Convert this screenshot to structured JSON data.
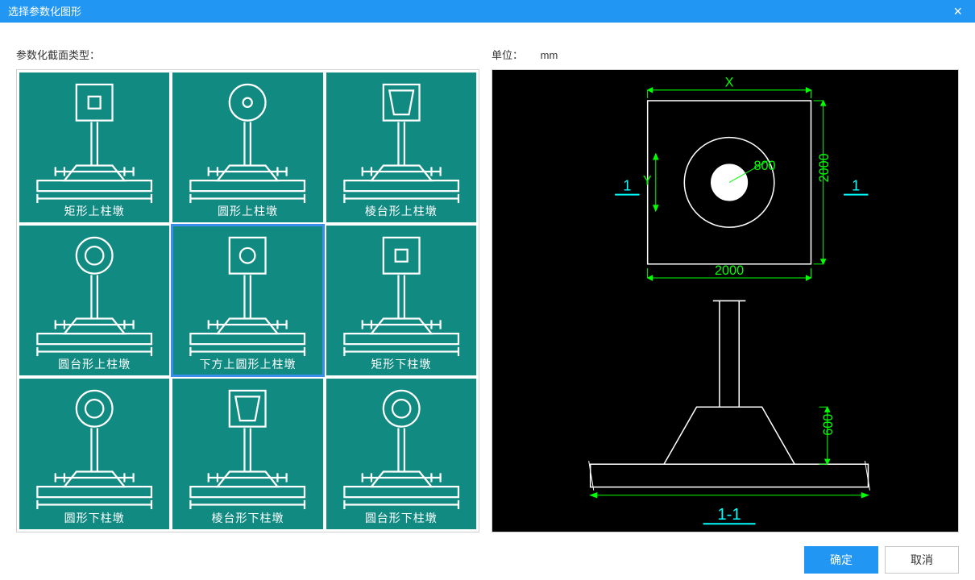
{
  "titlebar": {
    "title": "选择参数化图形"
  },
  "labels": {
    "section_type": "参数化截面类型：",
    "unit_label": "单位：",
    "unit_value": "mm"
  },
  "cells": [
    {
      "label": "矩形上柱墩",
      "icon": "rect-top",
      "selected": false
    },
    {
      "label": "圆形上柱墩",
      "icon": "circle-top",
      "selected": false
    },
    {
      "label": "棱台形上柱墩",
      "icon": "frustum-top",
      "selected": false
    },
    {
      "label": "圆台形上柱墩",
      "icon": "cone-top",
      "selected": false
    },
    {
      "label": "下方上圆形上柱墩",
      "icon": "square-circle-top",
      "selected": true
    },
    {
      "label": "矩形下柱墩",
      "icon": "rect-bottom",
      "selected": false
    },
    {
      "label": "圆形下柱墩",
      "icon": "circle-bottom",
      "selected": false
    },
    {
      "label": "棱台形下柱墩",
      "icon": "frustum-bottom",
      "selected": false
    },
    {
      "label": "圆台形下柱墩",
      "icon": "cone-bottom",
      "selected": false
    }
  ],
  "preview": {
    "dims": {
      "top_x_label": "X",
      "left_y_label": "Y",
      "circle_label": "800",
      "right_v_label": "2000",
      "bottom_h_label": "2000",
      "section_left": "1",
      "section_right": "1",
      "base_height": "600",
      "section_tag": "1-1"
    },
    "colors": {
      "bg": "#000000",
      "line": "#ffffff",
      "dim": "#00ff00",
      "section": "#00ffff"
    }
  },
  "buttons": {
    "ok": "确定",
    "cancel": "取消"
  }
}
